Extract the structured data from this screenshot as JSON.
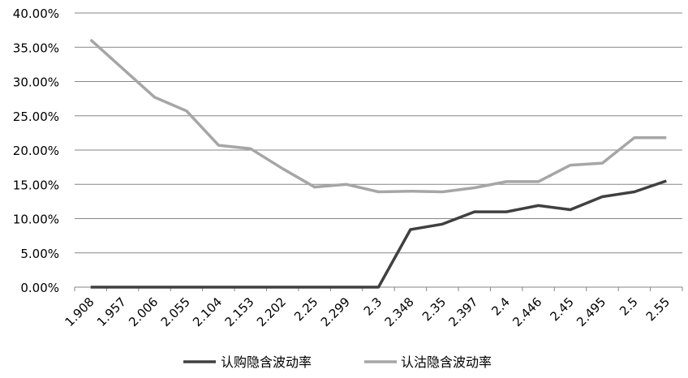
{
  "chart_data": {
    "type": "line",
    "title": "",
    "xlabel": "",
    "ylabel": "",
    "categories": [
      "1.908",
      "1.957",
      "2.006",
      "2.055",
      "2.104",
      "2.153",
      "2.202",
      "2.25",
      "2.299",
      "2.3",
      "2.348",
      "2.35",
      "2.397",
      "2.4",
      "2.446",
      "2.45",
      "2.495",
      "2.5",
      "2.55"
    ],
    "y_ticks": [
      "0.00%",
      "5.00%",
      "10.00%",
      "15.00%",
      "20.00%",
      "25.00%",
      "30.00%",
      "35.00%",
      "40.00%"
    ],
    "ylim": [
      0,
      40
    ],
    "grid": true,
    "legend_position": "bottom",
    "series": [
      {
        "name": "认购隐含波动率",
        "color": "#404040",
        "values": [
          0,
          0,
          0,
          0,
          0,
          0,
          0,
          0,
          0,
          0,
          8.4,
          9.2,
          11.0,
          11.0,
          11.9,
          11.3,
          13.2,
          13.9,
          15.5
        ]
      },
      {
        "name": "认沽隐含波动率",
        "color": "#a6a6a6",
        "values": [
          36.1,
          31.9,
          27.7,
          25.7,
          20.7,
          20.2,
          17.3,
          14.6,
          15.0,
          13.9,
          14.0,
          13.9,
          14.5,
          15.4,
          15.4,
          17.8,
          18.1,
          21.8,
          21.8
        ]
      }
    ]
  }
}
